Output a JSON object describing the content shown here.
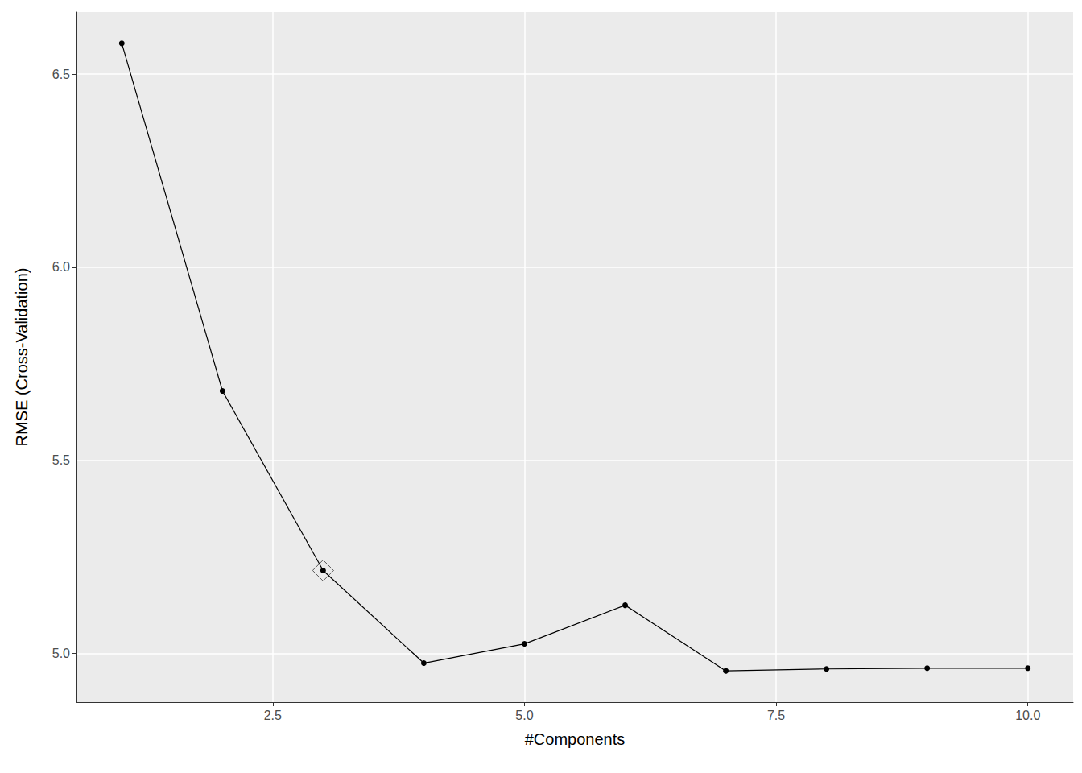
{
  "chart_data": {
    "type": "line",
    "xlabel": "#Components",
    "ylabel": "RMSE (Cross-Validation)",
    "x": [
      1,
      2,
      3,
      4,
      5,
      6,
      7,
      8,
      9,
      10
    ],
    "series": [
      {
        "type": "line",
        "marker": "circle",
        "color": "#000000",
        "values": [
          6.58,
          5.68,
          5.215,
          4.975,
          5.025,
          5.125,
          4.955,
          4.96,
          4.962,
          4.962
        ]
      },
      {
        "type": "scatter",
        "marker": "diamond",
        "color": "#000000",
        "values": [
          null,
          null,
          5.215,
          null,
          null,
          null,
          null,
          null,
          null,
          null
        ]
      }
    ],
    "xlim": [
      0.55,
      10.45
    ],
    "ylim": [
      4.874,
      6.661
    ],
    "xticks": [
      {
        "value": 2.5,
        "label": "2.5"
      },
      {
        "value": 5,
        "label": "5.0"
      },
      {
        "value": 7.5,
        "label": "7.5"
      },
      {
        "value": 10,
        "label": "10.0"
      }
    ],
    "yticks": [
      {
        "value": 5,
        "label": "5.0"
      },
      {
        "value": 5.5,
        "label": "5.5"
      },
      {
        "value": 6,
        "label": "6.0"
      },
      {
        "value": 6.5,
        "label": "6.5"
      }
    ],
    "grid": true
  }
}
